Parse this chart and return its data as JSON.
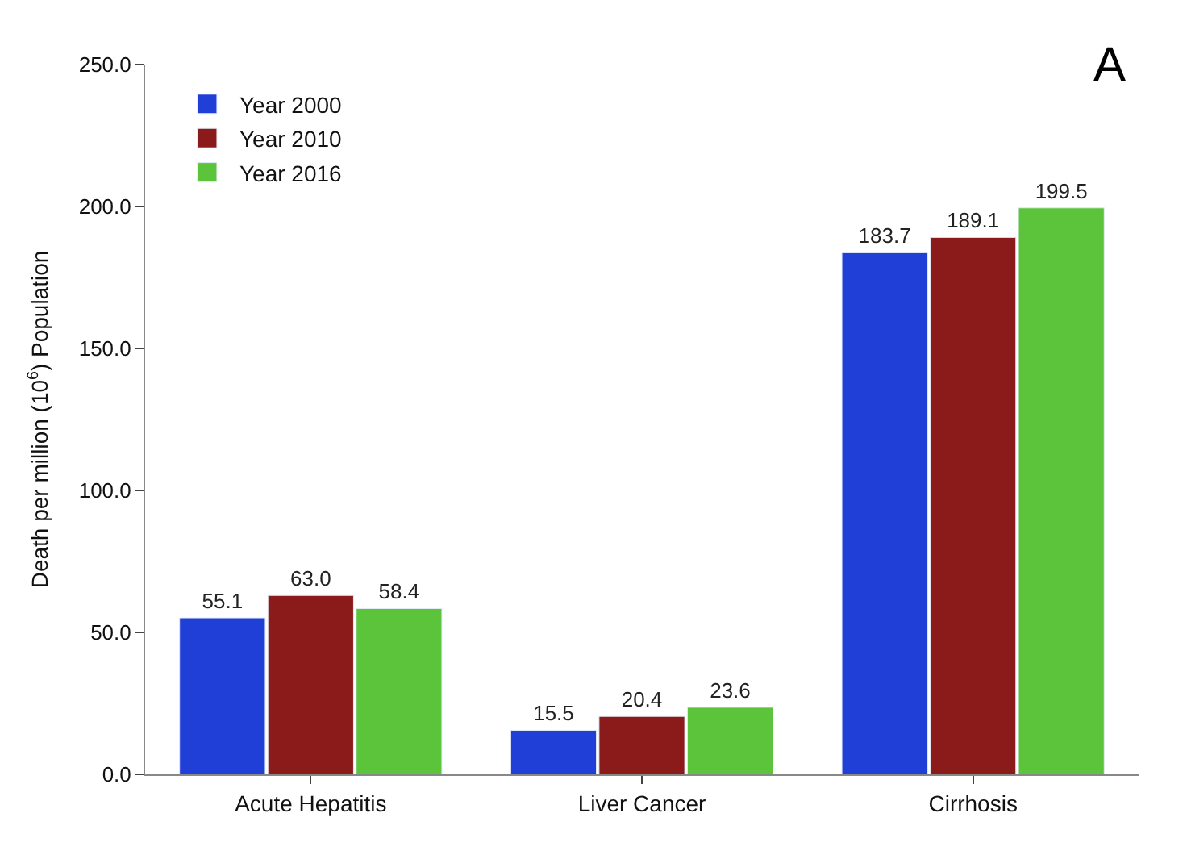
{
  "chart_data": {
    "type": "bar",
    "ylabel": "Death per million (10$^{6}$) Population",
    "categories": [
      "Acute Hepatitis",
      "Liver Cancer",
      "Cirrhosis"
    ],
    "series": [
      {
        "name": "Year 2000",
        "color": "#1f3fd6",
        "values": [
          55.1,
          15.5,
          183.7
        ],
        "value_labels": [
          "55.1",
          "15.5",
          "183.7"
        ]
      },
      {
        "name": "Year 2010",
        "color": "#8b1a1a",
        "values": [
          63.0,
          20.4,
          189.1
        ],
        "value_labels": [
          "63.0",
          "20.4",
          "189.1"
        ]
      },
      {
        "name": "Year 2016",
        "color": "#5cc43a",
        "values": [
          58.4,
          23.6,
          199.5
        ],
        "value_labels": [
          "58.4",
          "23.6",
          "199.5"
        ]
      }
    ],
    "ylim": [
      0,
      250
    ],
    "yticks": [
      {
        "value": 0,
        "label": "0.0"
      },
      {
        "value": 50,
        "label": "50.0"
      },
      {
        "value": 100,
        "label": "100.0"
      },
      {
        "value": 150,
        "label": "150.0"
      },
      {
        "value": 200,
        "label": "200.0"
      },
      {
        "value": 250,
        "label": "250.0"
      }
    ],
    "annotations": [
      "A"
    ],
    "legend": "top left"
  }
}
